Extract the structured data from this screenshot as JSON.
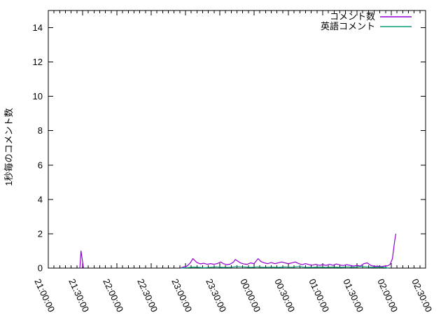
{
  "chart_data": {
    "type": "line",
    "title": "",
    "xlabel": "",
    "ylabel": "1秒毎のコメント数",
    "ylim": [
      0,
      15
    ],
    "y_ticks": [
      0,
      2,
      4,
      6,
      8,
      10,
      12,
      14
    ],
    "x_range_minutes": [
      0,
      330
    ],
    "x_major_step_minutes": 30,
    "x_minor_step_minutes": 5,
    "x_tick_labels": [
      "21:00:00",
      "21:30:00",
      "22:00:00",
      "22:30:00",
      "23:00:00",
      "23:30:00",
      "00:00:00",
      "00:30:00",
      "01:00:00",
      "01:30:00",
      "02:00:00",
      "02:30:00"
    ],
    "grid": false,
    "legend_position": "top-right-inside",
    "axis_color": "#000000",
    "background_color": "#ffffff",
    "series": [
      {
        "name": "コメント数",
        "color": "#9400d3",
        "segments": [
          [
            [
              27.6,
              0
            ],
            [
              28.6,
              1
            ],
            [
              30.8,
              0
            ]
          ],
          [
            [
              115.5,
              0
            ],
            [
              118,
              0.06
            ],
            [
              121,
              0.1
            ],
            [
              124,
              0.28
            ],
            [
              126.5,
              0.55
            ],
            [
              128,
              0.45
            ],
            [
              130,
              0.32
            ],
            [
              133,
              0.25
            ],
            [
              136,
              0.28
            ],
            [
              139,
              0.22
            ],
            [
              142,
              0.26
            ],
            [
              145,
              0.22
            ],
            [
              148,
              0.27
            ],
            [
              151,
              0.36
            ],
            [
              153,
              0.26
            ],
            [
              156,
              0.2
            ],
            [
              159,
              0.23
            ],
            [
              162,
              0.35
            ],
            [
              163.5,
              0.5
            ],
            [
              165,
              0.44
            ],
            [
              168,
              0.3
            ],
            [
              171,
              0.24
            ],
            [
              174,
              0.22
            ],
            [
              177,
              0.3
            ],
            [
              180,
              0.26
            ],
            [
              183.5,
              0.55
            ],
            [
              186,
              0.38
            ],
            [
              189,
              0.3
            ],
            [
              192,
              0.26
            ],
            [
              195,
              0.32
            ],
            [
              198,
              0.26
            ],
            [
              201,
              0.3
            ],
            [
              204,
              0.36
            ],
            [
              207,
              0.3
            ],
            [
              210,
              0.26
            ],
            [
              213,
              0.3
            ],
            [
              216,
              0.36
            ],
            [
              219,
              0.26
            ],
            [
              222,
              0.2
            ],
            [
              225,
              0.26
            ],
            [
              228,
              0.2
            ],
            [
              231,
              0.17
            ],
            [
              234,
              0.22
            ],
            [
              237,
              0.16
            ],
            [
              240,
              0.2
            ],
            [
              243,
              0.16
            ],
            [
              246,
              0.22
            ],
            [
              249,
              0.16
            ],
            [
              252,
              0.24
            ],
            [
              255,
              0.18
            ],
            [
              258,
              0.15
            ],
            [
              261,
              0.2
            ],
            [
              264,
              0.16
            ],
            [
              267,
              0.12
            ],
            [
              270,
              0.16
            ],
            [
              273,
              0.12
            ],
            [
              276,
              0.26
            ],
            [
              279,
              0.3
            ],
            [
              282,
              0.16
            ],
            [
              285,
              0.1
            ],
            [
              288,
              0.12
            ],
            [
              291,
              0.08
            ],
            [
              294,
              0.12
            ],
            [
              297,
              0.14
            ],
            [
              299,
              0.22
            ],
            [
              301,
              0.55
            ],
            [
              302,
              1.1
            ],
            [
              303,
              1.6
            ],
            [
              304,
              2
            ]
          ]
        ]
      },
      {
        "name": "英語コメント",
        "color": "#009e73",
        "segments": [
          [
            [
              116,
              0
            ],
            [
              122,
              0.03
            ],
            [
              127,
              0.06
            ],
            [
              132,
              0.04
            ],
            [
              137,
              0.02
            ],
            [
              142,
              0.05
            ],
            [
              147,
              0.07
            ],
            [
              153,
              0.04
            ],
            [
              159,
              0.05
            ],
            [
              165,
              0.09
            ],
            [
              171,
              0.07
            ],
            [
              177,
              0.04
            ],
            [
              183,
              0.07
            ],
            [
              189,
              0.04
            ],
            [
              195,
              0.06
            ],
            [
              201,
              0.04
            ],
            [
              207,
              0.07
            ],
            [
              213,
              0.05
            ],
            [
              219,
              0.09
            ],
            [
              225,
              0.05
            ],
            [
              231,
              0.04
            ],
            [
              237,
              0.06
            ],
            [
              243,
              0.04
            ],
            [
              249,
              0.06
            ],
            [
              255,
              0.04
            ],
            [
              261,
              0.07
            ],
            [
              267,
              0.05
            ],
            [
              273,
              0.09
            ],
            [
              279,
              0.07
            ],
            [
              285,
              0.04
            ],
            [
              290,
              0.06
            ],
            [
              296,
              0.02
            ],
            [
              297.5,
              0
            ]
          ]
        ]
      }
    ]
  }
}
